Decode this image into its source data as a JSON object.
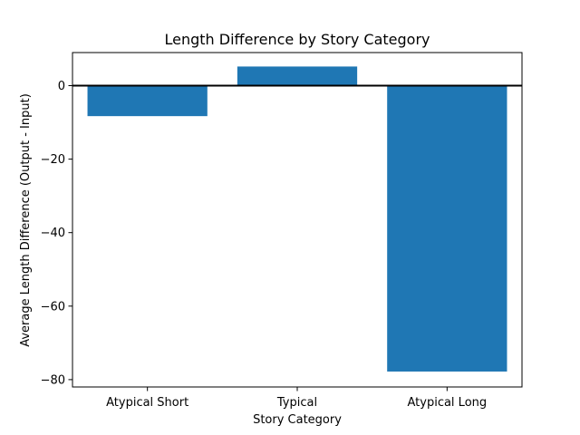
{
  "chart_data": {
    "type": "bar",
    "title": "Length Difference by Story Category",
    "xlabel": "Story Category",
    "ylabel": "Average Length Difference (Output - Input)",
    "categories": [
      "Atypical Short",
      "Typical",
      "Atypical Long"
    ],
    "values": [
      -8.3,
      5.2,
      -77.8
    ],
    "ylim": [
      -82.0,
      9.0
    ],
    "yticks": [
      0,
      -20,
      -40,
      -60,
      -80
    ],
    "grid": false,
    "bar_color": "#1f77b4",
    "zero_line_color": "#000000"
  }
}
